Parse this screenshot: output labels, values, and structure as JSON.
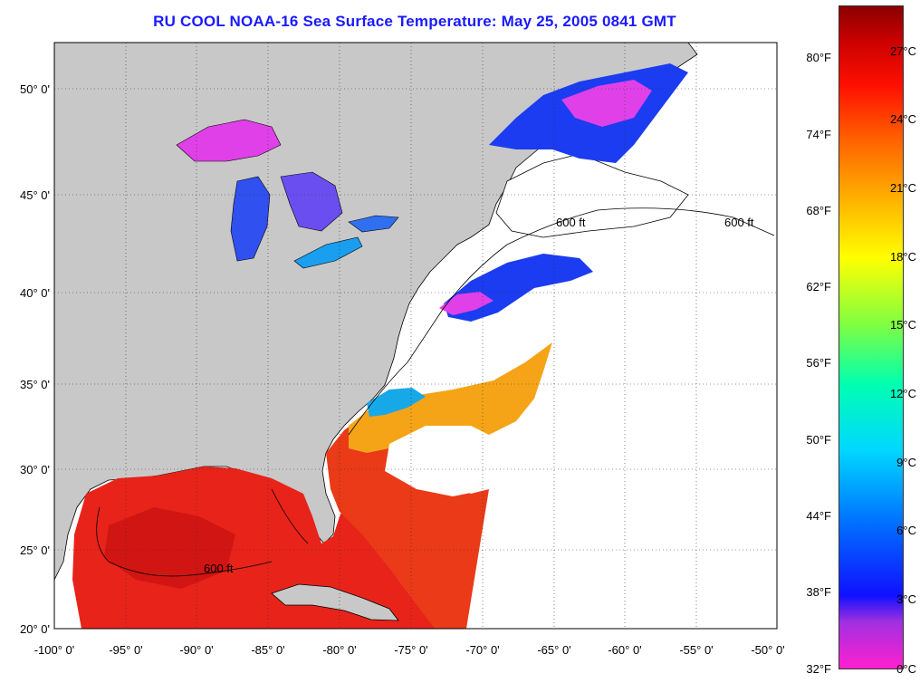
{
  "title": "RU COOL  NOAA-16  Sea Surface Temperature:  May 25, 2005 0841 GMT",
  "map": {
    "lon_ticks": [
      "-100° 0'",
      "-95° 0'",
      "-90° 0'",
      "-85° 0'",
      "-80° 0'",
      "-75° 0'",
      "-70° 0'",
      "-65° 0'",
      "-60° 0'",
      "-55° 0'",
      "-50° 0'"
    ],
    "lat_ticks": [
      "50° 0'",
      "45° 0'",
      "40° 0'",
      "35° 0'",
      "30° 0'",
      "25° 0'",
      "20° 0'"
    ],
    "contour_label": "600 ft",
    "colors": {
      "land": "#c8c8c8",
      "no_data": "#ffffff",
      "warm_sst": "#e8231a",
      "gulf_stream": "#f5a418",
      "cold_water": "#1b3cf0",
      "very_cold_water": "#e040e8"
    }
  },
  "colorbar": {
    "fahrenheit_labels": [
      "80°F",
      "74°F",
      "68°F",
      "62°F",
      "56°F",
      "50°F",
      "44°F",
      "38°F",
      "32°F"
    ],
    "celsius_labels": [
      "27°C",
      "24°C",
      "21°C",
      "18°C",
      "15°C",
      "12°C",
      "9°C",
      "6°C",
      "3°C",
      "0°C"
    ],
    "range_c": [
      0,
      29
    ],
    "stops": [
      "#ff20d0",
      "#8030e8",
      "#1010ff",
      "#0070ff",
      "#00d8ff",
      "#00ffb0",
      "#80ff40",
      "#ffff00",
      "#ffc000",
      "#ff7000",
      "#ff2000",
      "#d00000",
      "#900000"
    ]
  }
}
